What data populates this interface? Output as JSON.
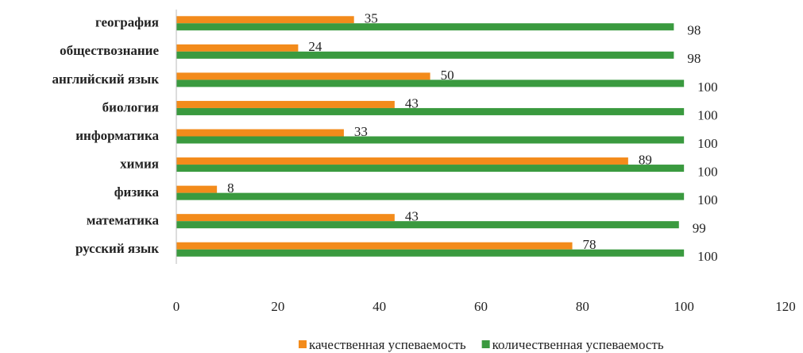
{
  "chart_data": {
    "type": "barh",
    "categories": [
      "география",
      "обществознание",
      "английский язык",
      "биология",
      "информатика",
      "химия",
      "физика",
      "математика",
      "русский язык"
    ],
    "series": [
      {
        "name": "качественная успеваемость",
        "color": "#f38b1b",
        "values": [
          35,
          24,
          50,
          43,
          33,
          89,
          8,
          43,
          78
        ]
      },
      {
        "name": "количественная успеваемость",
        "color": "#3a9a3f",
        "values": [
          98,
          98,
          100,
          100,
          100,
          100,
          100,
          99,
          100
        ]
      }
    ],
    "xlim": [
      0,
      120
    ],
    "xticks": [
      0,
      20,
      40,
      60,
      80,
      100,
      120
    ],
    "legend": "bottom"
  }
}
